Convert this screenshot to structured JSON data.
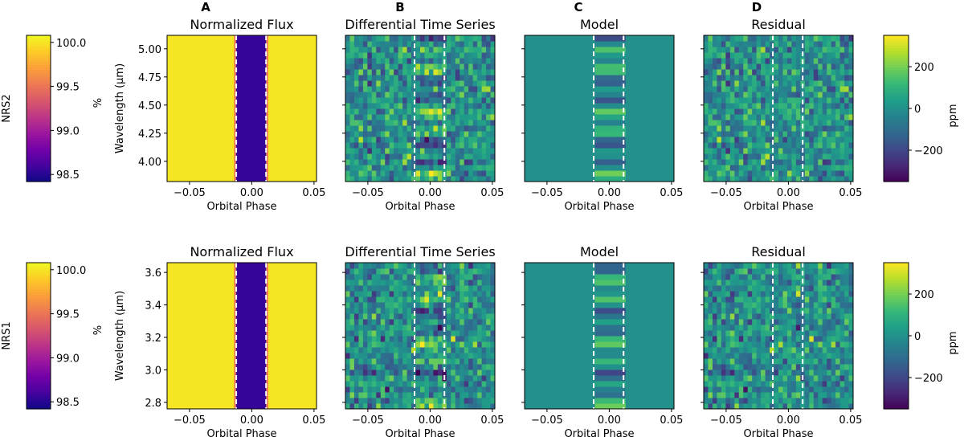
{
  "panel_letters": [
    "A",
    "B",
    "C",
    "D"
  ],
  "colors": {
    "plasma": [
      "#0d0887",
      "#46039f",
      "#7201a8",
      "#9c179e",
      "#bd3786",
      "#d8576b",
      "#ed7953",
      "#fb9f3a",
      "#fdca26",
      "#f0f921"
    ],
    "viridis": [
      "#440154",
      "#482878",
      "#3e4989",
      "#31688e",
      "#26828e",
      "#1f9e89",
      "#35b779",
      "#6ece58",
      "#b5de2b",
      "#fde725"
    ],
    "transit_line": "#ffffff",
    "flux_in": "#3b0596",
    "flux_out": "#f7e325",
    "flux_edge": "#e86a5f"
  },
  "chart_data": [
    {
      "type": "heatmap",
      "detector": "NRS2",
      "row_label": "NRS2",
      "panels": [
        {
          "letter": "A",
          "title": "Normalized Flux",
          "xlabel": "Orbital Phase",
          "ylabel": "Wavelength (μm)",
          "colormap": "plasma",
          "transit_markers": [
            -0.0125,
            0.0115
          ]
        },
        {
          "letter": "B",
          "title": "Differential Time Series",
          "xlabel": "Orbital Phase",
          "colormap": "viridis",
          "transit_markers": [
            -0.0125,
            0.0115
          ]
        },
        {
          "letter": "C",
          "title": "Model",
          "xlabel": "Orbital Phase",
          "colormap": "viridis",
          "transit_markers": [
            -0.0125,
            0.0115
          ]
        },
        {
          "letter": "D",
          "title": "Residual",
          "xlabel": "Orbital Phase",
          "colormap": "viridis",
          "transit_markers": [
            -0.0125,
            0.0115
          ]
        }
      ],
      "x_ticks": [
        "−0.05",
        "0.00",
        "0.05"
      ],
      "x_tick_values": [
        -0.05,
        0.0,
        0.05
      ],
      "xlim": [
        -0.068,
        0.052
      ],
      "y_ticks": [
        "4.00",
        "4.25",
        "4.50",
        "4.75",
        "5.00"
      ],
      "y_tick_values": [
        4.0,
        4.25,
        4.5,
        4.75,
        5.0
      ],
      "ylim": [
        3.82,
        5.12
      ],
      "flux_colorbar": {
        "label": "%",
        "ticks": [
          "98.5",
          "99.0",
          "99.5",
          "100.0"
        ],
        "tick_values": [
          98.5,
          99.0,
          99.5,
          100.0
        ],
        "range": [
          98.42,
          100.08
        ]
      },
      "ppm_colorbar": {
        "label": "ppm",
        "ticks": [
          "−200",
          "0",
          "200"
        ],
        "tick_values": [
          -200,
          0,
          200
        ],
        "range": [
          -350,
          350
        ]
      },
      "flux_out_of_transit": 100.0,
      "flux_in_transit": 98.55
    },
    {
      "type": "heatmap",
      "detector": "NRS1",
      "row_label": "NRS1",
      "panels": [
        {
          "letter": "A",
          "title": "Normalized Flux",
          "xlabel": "Orbital Phase",
          "ylabel": "Wavelength (μm)",
          "colormap": "plasma",
          "transit_markers": [
            -0.0125,
            0.0115
          ]
        },
        {
          "letter": "B",
          "title": "Differential Time Series",
          "xlabel": "Orbital Phase",
          "colormap": "viridis",
          "transit_markers": [
            -0.0125,
            0.0115
          ]
        },
        {
          "letter": "C",
          "title": "Model",
          "xlabel": "Orbital Phase",
          "colormap": "viridis",
          "transit_markers": [
            -0.0125,
            0.0115
          ]
        },
        {
          "letter": "D",
          "title": "Residual",
          "xlabel": "Orbital Phase",
          "colormap": "viridis",
          "transit_markers": [
            -0.0125,
            0.0115
          ]
        }
      ],
      "x_ticks": [
        "−0.05",
        "0.00",
        "0.05"
      ],
      "x_tick_values": [
        -0.05,
        0.0,
        0.05
      ],
      "xlim": [
        -0.068,
        0.052
      ],
      "y_ticks": [
        "2.8",
        "3.0",
        "3.2",
        "3.4",
        "3.6"
      ],
      "y_tick_values": [
        2.8,
        3.0,
        3.2,
        3.4,
        3.6
      ],
      "ylim": [
        2.76,
        3.66
      ],
      "flux_colorbar": {
        "label": "%",
        "ticks": [
          "98.5",
          "99.0",
          "99.5",
          "100.0"
        ],
        "tick_values": [
          98.5,
          99.0,
          99.5,
          100.0
        ],
        "range": [
          98.42,
          100.08
        ]
      },
      "ppm_colorbar": {
        "label": "ppm",
        "ticks": [
          "−200",
          "0",
          "200"
        ],
        "tick_values": [
          -200,
          0,
          200
        ],
        "range": [
          -350,
          350
        ]
      },
      "flux_out_of_transit": 100.0,
      "flux_in_transit": 98.55
    }
  ]
}
